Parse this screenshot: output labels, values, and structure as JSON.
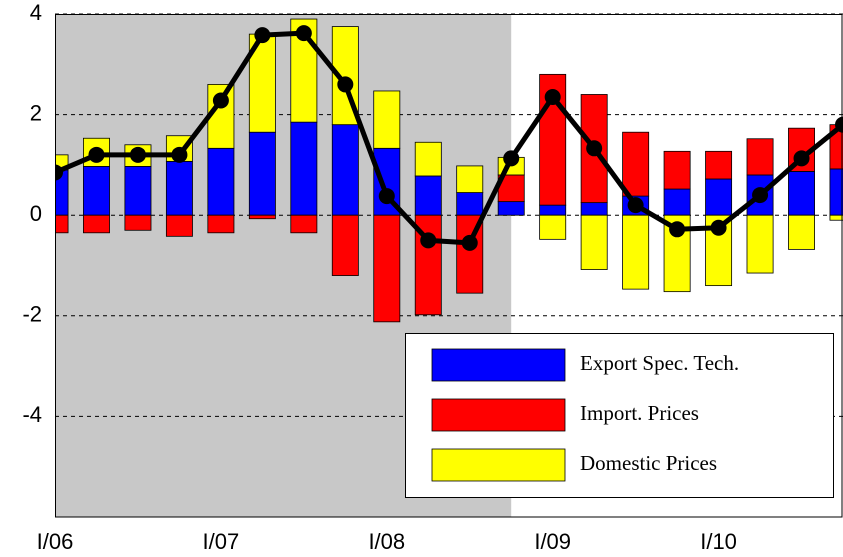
{
  "chart_data": {
    "type": "bar",
    "categories": [
      "I/06",
      null,
      null,
      null,
      "I/07",
      null,
      null,
      null,
      "I/08",
      null,
      null,
      null,
      "I/09",
      null,
      null,
      null,
      "I/10",
      null,
      null,
      null
    ],
    "series": [
      {
        "name": "Export Spec. Tech.",
        "color": "#0000ff",
        "values": [
          0.9,
          0.97,
          0.97,
          1.07,
          1.33,
          1.65,
          1.85,
          1.8,
          1.33,
          0.78,
          0.45,
          0.27,
          0.2,
          0.25,
          0.38,
          0.52,
          0.72,
          0.8,
          0.87,
          0.92
        ]
      },
      {
        "name": "Import. Prices",
        "color": "#ff0000",
        "values": [
          -0.35,
          -0.35,
          -0.3,
          -0.42,
          -0.35,
          -0.07,
          -0.35,
          -1.2,
          -2.12,
          -1.98,
          -1.55,
          0.53,
          2.6,
          2.15,
          1.27,
          0.75,
          0.55,
          0.72,
          0.86,
          0.88
        ]
      },
      {
        "name": "Domestic Prices",
        "color": "#ffff00",
        "values": [
          0.3,
          0.56,
          0.43,
          0.51,
          1.27,
          1.95,
          2.05,
          1.95,
          1.14,
          0.67,
          0.53,
          0.35,
          -0.48,
          -1.08,
          -1.47,
          -1.52,
          -1.4,
          -1.15,
          -0.68,
          -0.1
        ]
      }
    ],
    "line": {
      "color": "#000000",
      "values": [
        0.85,
        1.2,
        1.2,
        1.2,
        2.28,
        3.58,
        3.62,
        2.6,
        0.38,
        -0.5,
        -0.55,
        1.13,
        2.35,
        1.33,
        0.2,
        -0.28,
        -0.25,
        0.4,
        1.13,
        1.8
      ]
    },
    "shaded_until": 11,
    "shade_color": "#c8c8c8",
    "ylim": [
      -6,
      4
    ],
    "yticks": [
      -4,
      -2,
      0,
      2,
      4
    ],
    "grid": true,
    "legend": "lower right"
  }
}
